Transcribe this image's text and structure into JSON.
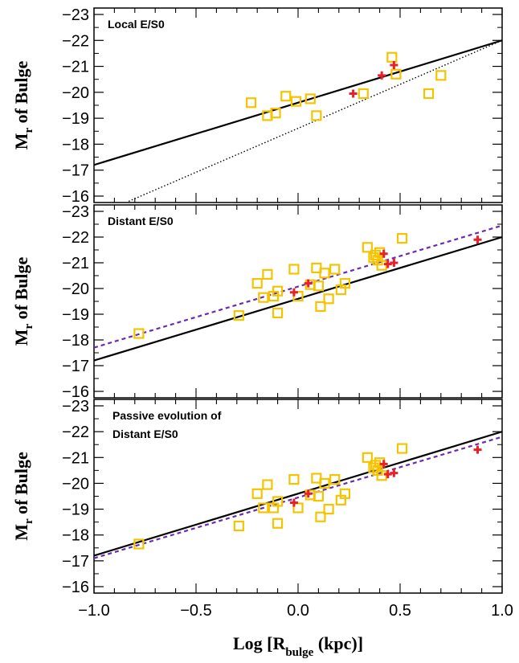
{
  "chart_data": [
    {
      "type": "scatter",
      "title": "Local E/S0",
      "ylabel": "M_r of Bulge",
      "ylabel_main": "M",
      "ylabel_sub": "r",
      "ylabel_rest": " of Bulge",
      "xlim": [
        -1.0,
        1.0
      ],
      "ylim": [
        -16,
        -23
      ],
      "yticks": [
        "-23",
        "-22",
        "-21",
        "-20",
        "-19",
        "-18",
        "-17",
        "-16"
      ],
      "series": [
        {
          "marker": "square",
          "color": "#f5c400",
          "points": [
            [
              -0.23,
              -19.6
            ],
            [
              -0.15,
              -19.1
            ],
            [
              -0.11,
              -19.2
            ],
            [
              -0.06,
              -19.85
            ],
            [
              -0.01,
              -19.65
            ],
            [
              0.06,
              -19.75
            ],
            [
              0.09,
              -19.1
            ],
            [
              0.32,
              -19.95
            ],
            [
              0.46,
              -21.35
            ],
            [
              0.48,
              -20.7
            ],
            [
              0.64,
              -19.95
            ],
            [
              0.7,
              -20.65
            ]
          ]
        },
        {
          "marker": "cross",
          "color": "#e8202a",
          "points": [
            [
              0.27,
              -19.95
            ],
            [
              0.41,
              -20.65
            ],
            [
              0.47,
              -21.05
            ]
          ]
        }
      ],
      "lines": [
        {
          "style": "solid",
          "color": "#000000",
          "x": [
            -1.0,
            1.0
          ],
          "y": [
            -17.2,
            -22.0
          ]
        },
        {
          "style": "dotted",
          "color": "#000000",
          "x": [
            -0.83,
            1.0
          ],
          "y": [
            -15.8,
            -22.0
          ]
        }
      ]
    },
    {
      "type": "scatter",
      "title": "Distant E/S0",
      "ylabel": "M_r of Bulge",
      "ylabel_main": "M",
      "ylabel_sub": "r",
      "ylabel_rest": " of Bulge",
      "xlim": [
        -1.0,
        1.0
      ],
      "ylim": [
        -16,
        -23
      ],
      "yticks": [
        "-23",
        "-22",
        "-21",
        "-20",
        "-19",
        "-18",
        "-17",
        "-16"
      ],
      "series": [
        {
          "marker": "square",
          "color": "#f5c400",
          "points": [
            [
              -0.78,
              -18.25
            ],
            [
              -0.29,
              -18.95
            ],
            [
              -0.2,
              -20.2
            ],
            [
              -0.17,
              -19.65
            ],
            [
              -0.15,
              -20.55
            ],
            [
              -0.12,
              -19.7
            ],
            [
              -0.1,
              -19.05
            ],
            [
              -0.1,
              -19.9
            ],
            [
              -0.02,
              -20.75
            ],
            [
              0.0,
              -19.7
            ],
            [
              0.06,
              -20.15
            ],
            [
              0.09,
              -20.8
            ],
            [
              0.1,
              -20.1
            ],
            [
              0.11,
              -19.3
            ],
            [
              0.13,
              -20.6
            ],
            [
              0.15,
              -19.6
            ],
            [
              0.18,
              -20.75
            ],
            [
              0.21,
              -19.95
            ],
            [
              0.23,
              -20.2
            ],
            [
              0.34,
              -21.6
            ],
            [
              0.37,
              -21.2
            ],
            [
              0.38,
              -21.3
            ],
            [
              0.39,
              -21.1
            ],
            [
              0.4,
              -21.4
            ],
            [
              0.41,
              -20.9
            ],
            [
              0.51,
              -21.95
            ]
          ]
        },
        {
          "marker": "cross",
          "color": "#e8202a",
          "points": [
            [
              -0.02,
              -19.85
            ],
            [
              0.05,
              -20.2
            ],
            [
              0.42,
              -21.35
            ],
            [
              0.44,
              -20.95
            ],
            [
              0.47,
              -21.0
            ],
            [
              0.88,
              -21.9
            ]
          ]
        }
      ],
      "lines": [
        {
          "style": "solid",
          "color": "#000000",
          "x": [
            -1.0,
            1.0
          ],
          "y": [
            -17.2,
            -22.0
          ]
        },
        {
          "style": "dashed",
          "color": "#6a2bb0",
          "x": [
            -1.0,
            1.0
          ],
          "y": [
            -17.7,
            -22.45
          ]
        }
      ]
    },
    {
      "type": "scatter",
      "title_lines": [
        "Passive evolution of",
        "Distant E/S0"
      ],
      "ylabel": "M_r of Bulge",
      "ylabel_main": "M",
      "ylabel_sub": "r",
      "ylabel_rest": " of Bulge",
      "xlabel": "Log [R_bulge (kpc)]",
      "xlabel_pre": "Log [R",
      "xlabel_sub": "bulge",
      "xlabel_post": " (kpc)]",
      "xlim": [
        -1.0,
        1.0
      ],
      "ylim": [
        -16,
        -23
      ],
      "yticks": [
        "-23",
        "-22",
        "-21",
        "-20",
        "-19",
        "-18",
        "-17",
        "-16"
      ],
      "xticks": [
        "-1.0",
        "-0.5",
        "0.0",
        "0.5",
        "1.0"
      ],
      "series": [
        {
          "marker": "square",
          "color": "#f5c400",
          "points": [
            [
              -0.78,
              -17.65
            ],
            [
              -0.29,
              -18.35
            ],
            [
              -0.2,
              -19.6
            ],
            [
              -0.17,
              -19.05
            ],
            [
              -0.15,
              -19.95
            ],
            [
              -0.12,
              -19.05
            ],
            [
              -0.1,
              -18.45
            ],
            [
              -0.1,
              -19.3
            ],
            [
              -0.02,
              -20.15
            ],
            [
              0.0,
              -19.05
            ],
            [
              0.06,
              -19.55
            ],
            [
              0.09,
              -20.2
            ],
            [
              0.1,
              -19.5
            ],
            [
              0.11,
              -18.7
            ],
            [
              0.13,
              -20.0
            ],
            [
              0.15,
              -19.0
            ],
            [
              0.18,
              -20.15
            ],
            [
              0.21,
              -19.35
            ],
            [
              0.23,
              -19.6
            ],
            [
              0.34,
              -21.0
            ],
            [
              0.37,
              -20.6
            ],
            [
              0.38,
              -20.7
            ],
            [
              0.39,
              -20.5
            ],
            [
              0.4,
              -20.8
            ],
            [
              0.41,
              -20.3
            ],
            [
              0.51,
              -21.35
            ]
          ]
        },
        {
          "marker": "cross",
          "color": "#e8202a",
          "points": [
            [
              -0.02,
              -19.25
            ],
            [
              0.05,
              -19.6
            ],
            [
              0.42,
              -20.75
            ],
            [
              0.44,
              -20.35
            ],
            [
              0.47,
              -20.4
            ],
            [
              0.88,
              -21.3
            ]
          ]
        }
      ],
      "lines": [
        {
          "style": "solid",
          "color": "#000000",
          "x": [
            -1.0,
            1.0
          ],
          "y": [
            -17.2,
            -22.0
          ]
        },
        {
          "style": "dashed",
          "color": "#6a2bb0",
          "x": [
            -1.0,
            1.0
          ],
          "y": [
            -17.1,
            -21.8
          ]
        }
      ]
    }
  ]
}
